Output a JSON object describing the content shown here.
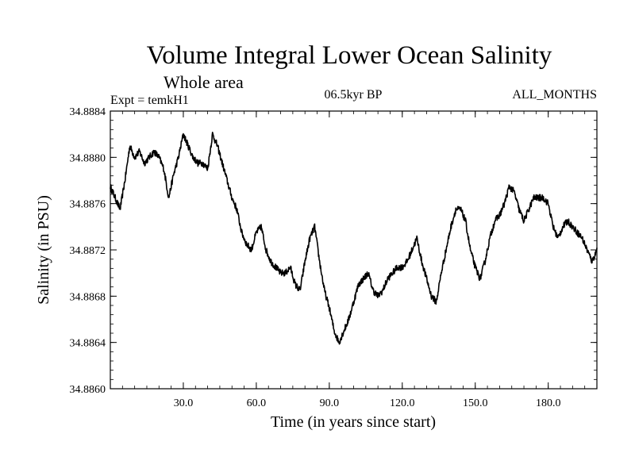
{
  "chart_data": {
    "type": "line",
    "title": "Volume Integral Lower Ocean Salinity",
    "subtitle": "Whole area",
    "left_label": "Expt = temkH1",
    "center_label": "06.5kyr BP",
    "right_label": "ALL_MONTHS",
    "xlabel": "Time (in years since start)",
    "ylabel": "Salinity (in PSU)",
    "xlim": [
      0,
      200
    ],
    "ylim": [
      34.886,
      34.8884
    ],
    "x_ticks": [
      30,
      60,
      90,
      120,
      150,
      180
    ],
    "x_tick_labels": [
      "30.0",
      "60.0",
      "90.0",
      "120.0",
      "150.0",
      "180.0"
    ],
    "y_ticks": [
      34.886,
      34.8864,
      34.8868,
      34.8872,
      34.8876,
      34.888,
      34.8884
    ],
    "y_tick_labels": [
      "34.8860",
      "34.8864",
      "34.8868",
      "34.8872",
      "34.8876",
      "34.8880",
      "34.8884"
    ],
    "series": [
      {
        "name": "salinity",
        "color": "#000000",
        "x": [
          0,
          2,
          4,
          6,
          8,
          10,
          12,
          14,
          16,
          18,
          20,
          22,
          24,
          26,
          28,
          30,
          32,
          34,
          36,
          38,
          40,
          42,
          44,
          46,
          48,
          50,
          52,
          54,
          56,
          58,
          60,
          62,
          64,
          66,
          68,
          70,
          72,
          74,
          76,
          78,
          80,
          82,
          84,
          86,
          88,
          90,
          92,
          94,
          96,
          98,
          100,
          102,
          104,
          106,
          108,
          110,
          112,
          114,
          116,
          118,
          120,
          122,
          124,
          126,
          128,
          130,
          132,
          134,
          136,
          138,
          140,
          142,
          144,
          146,
          148,
          150,
          152,
          154,
          156,
          158,
          160,
          162,
          164,
          166,
          168,
          170,
          172,
          174,
          176,
          178,
          180,
          182,
          184,
          186,
          188,
          190,
          192,
          194,
          196,
          198,
          200
        ],
        "values": [
          34.88775,
          34.88765,
          34.88755,
          34.8878,
          34.8881,
          34.888,
          34.88805,
          34.88795,
          34.888,
          34.88805,
          34.888,
          34.8879,
          34.88765,
          34.88785,
          34.888,
          34.8882,
          34.8881,
          34.888,
          34.88795,
          34.88795,
          34.8879,
          34.8882,
          34.8881,
          34.88795,
          34.8878,
          34.88765,
          34.88755,
          34.88735,
          34.88725,
          34.8872,
          34.88735,
          34.8874,
          34.8872,
          34.8871,
          34.88705,
          34.887,
          34.887,
          34.88705,
          34.8869,
          34.88685,
          34.8871,
          34.8873,
          34.8874,
          34.8871,
          34.88685,
          34.8867,
          34.8865,
          34.8864,
          34.8865,
          34.8866,
          34.88675,
          34.8869,
          34.88695,
          34.887,
          34.88685,
          34.8868,
          34.88685,
          34.88695,
          34.887,
          34.88705,
          34.88705,
          34.8871,
          34.8872,
          34.8873,
          34.8871,
          34.88695,
          34.8868,
          34.88675,
          34.887,
          34.8872,
          34.8874,
          34.88755,
          34.88755,
          34.88745,
          34.8872,
          34.88705,
          34.88695,
          34.8871,
          34.8873,
          34.88745,
          34.8875,
          34.8876,
          34.88775,
          34.8877,
          34.88755,
          34.88745,
          34.88755,
          34.88765,
          34.88765,
          34.88765,
          34.8876,
          34.8874,
          34.8873,
          34.8874,
          34.88745,
          34.8874,
          34.88735,
          34.8873,
          34.8872,
          34.8871,
          34.8872
        ]
      }
    ]
  }
}
